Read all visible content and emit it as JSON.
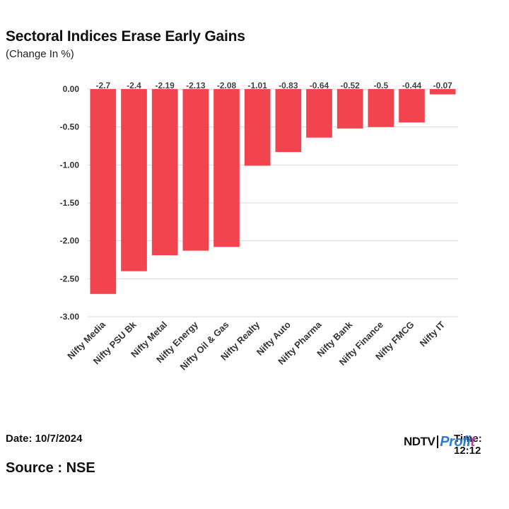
{
  "header": {
    "title": "Sectoral Indices Erase Early Gains",
    "subtitle": "(Change In %)"
  },
  "footer": {
    "date": "Date: 10/7/2024",
    "time": "Time: 12:12",
    "source": "Source : NSE",
    "logo_ndtv": "NDTV",
    "logo_profit_main": "Profi",
    "logo_profit_end": "t"
  },
  "colors": {
    "bar": "#f2444f",
    "grid": "#d9d9d9",
    "axis_text": "#333333",
    "label_text": "#444444"
  },
  "chart_data": {
    "type": "bar",
    "title": "Sectoral Indices Erase Early Gains",
    "subtitle": "(Change In %)",
    "xlabel": "",
    "ylabel": "",
    "categories": [
      "Nifty Media",
      "Nifty PSU Bk",
      "Nifty Metal",
      "Nifty Energy",
      "Nifty Oil & Gas",
      "Nifty Realty",
      "Nifty Auto",
      "Nifty Pharma",
      "Nifty Bank",
      "Nifty Finance",
      "Nifty FMCG",
      "Nifty IT"
    ],
    "values": [
      -2.7,
      -2.4,
      -2.19,
      -2.13,
      -2.08,
      -1.01,
      -0.83,
      -0.64,
      -0.52,
      -0.5,
      -0.44,
      -0.07
    ],
    "data_labels": [
      "-2.7",
      "-2.4",
      "-2.19",
      "-2.13",
      "-2.08",
      "-1.01",
      "-0.83",
      "-0.64",
      "-0.52",
      "-0.5",
      "-0.44",
      "-0.07"
    ],
    "yticks": [
      0,
      -0.5,
      -1,
      -1.5,
      -2,
      -2.5,
      -3
    ],
    "ytick_labels": [
      "0.00",
      "-0.50",
      "-1.00",
      "-1.50",
      "-2.00",
      "-2.50",
      "-3.00"
    ],
    "ylim": [
      -3,
      0
    ],
    "grid": true,
    "legend": "none"
  }
}
